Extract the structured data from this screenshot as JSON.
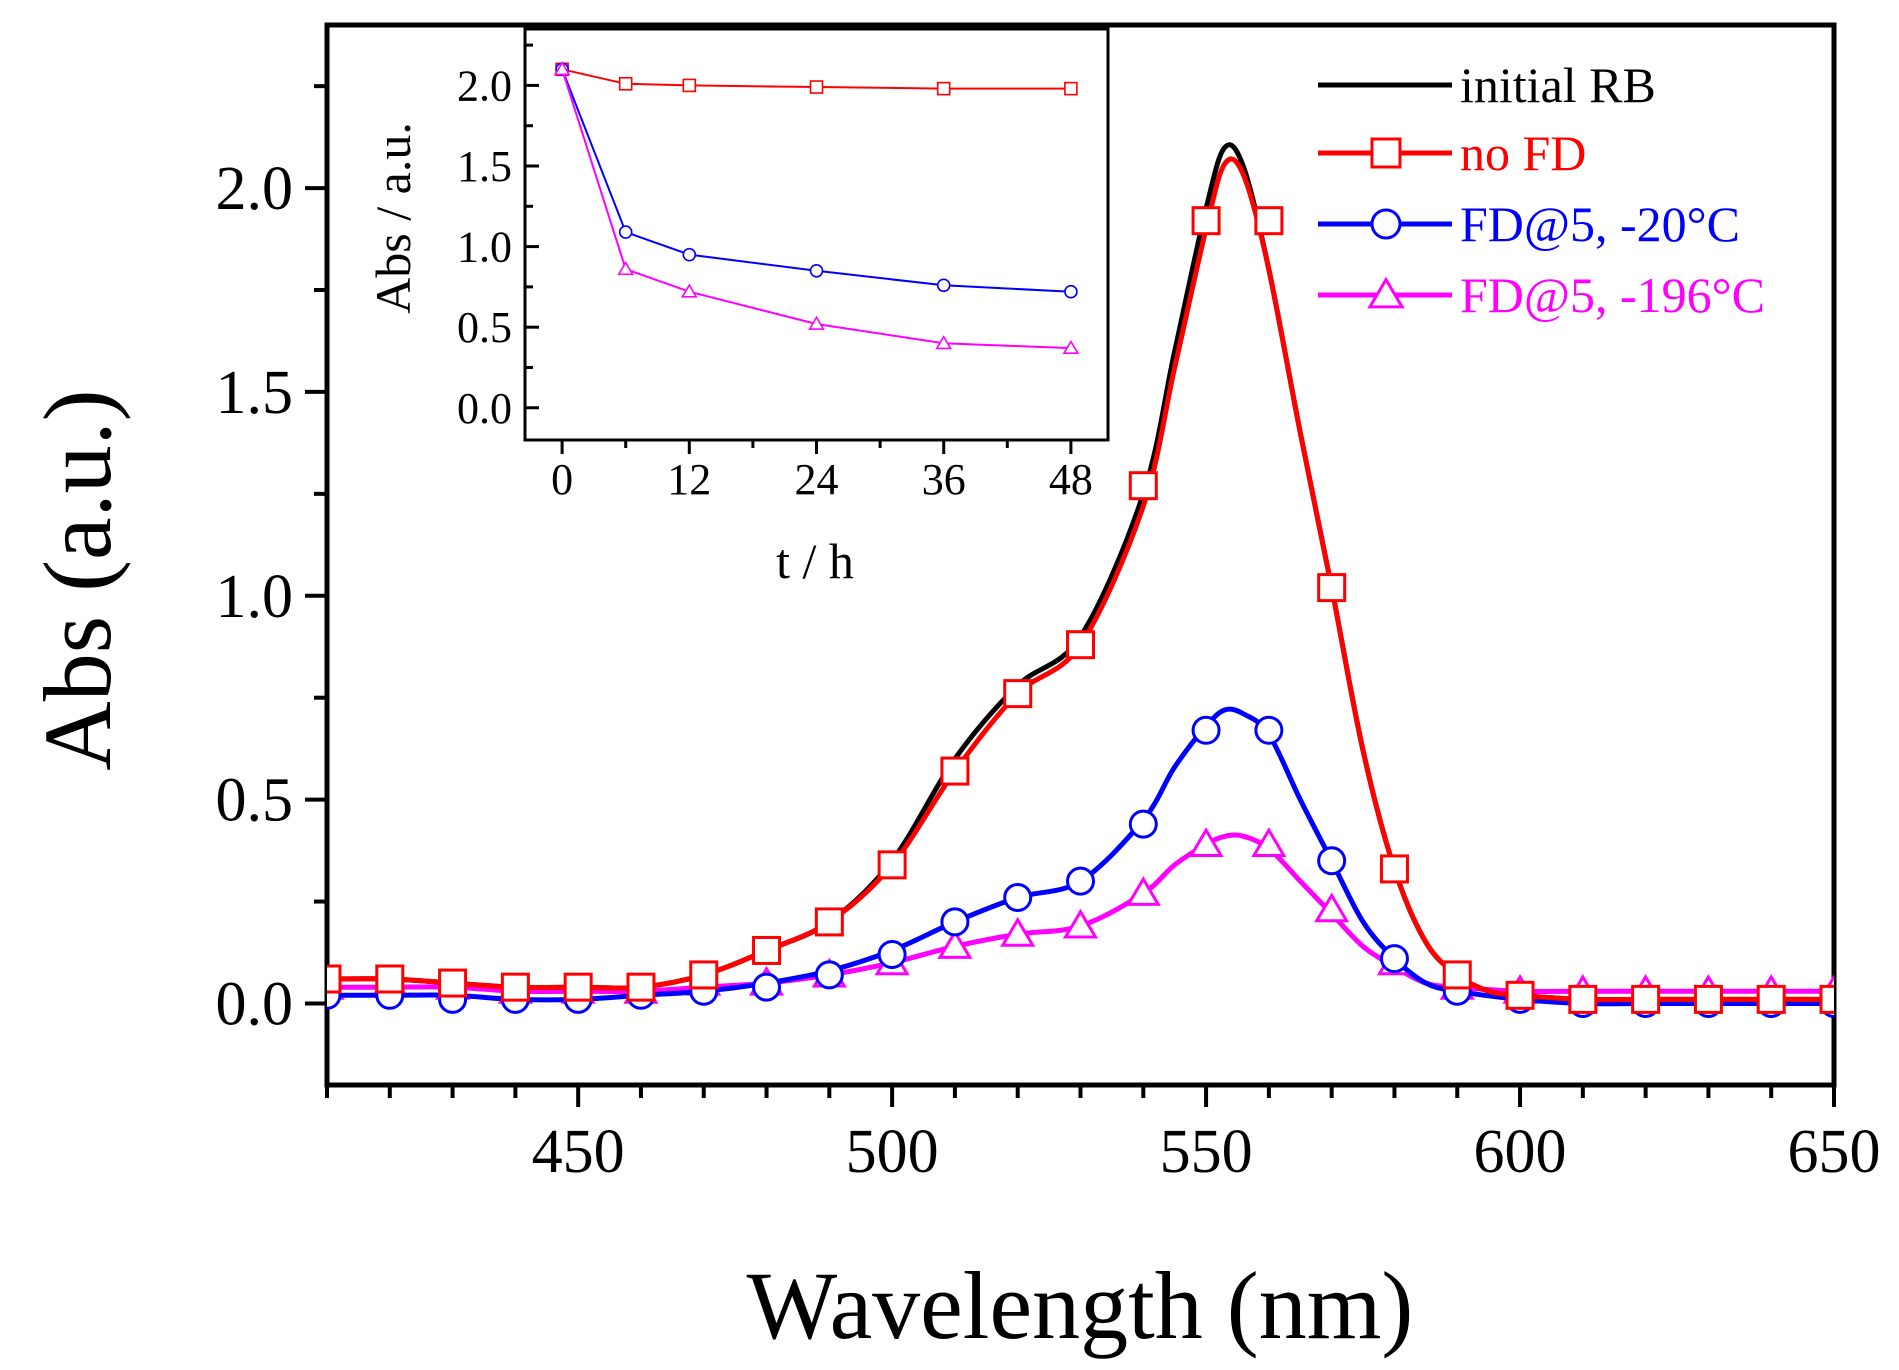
{
  "chart_data": [
    {
      "type": "line",
      "title": "",
      "xlabel": "Wavelength (nm)",
      "ylabel": "Abs (a.u.)",
      "xlim": [
        410,
        650
      ],
      "ylim": [
        -0.2,
        2.4
      ],
      "xticks": [
        450,
        500,
        550,
        600,
        650
      ],
      "yticks": [
        0.0,
        0.5,
        1.0,
        1.5,
        2.0
      ],
      "x_tick_labels": [
        "450",
        "500",
        "550",
        "600",
        "650"
      ],
      "y_tick_labels": [
        "0.0",
        "0.5",
        "1.0",
        "1.5",
        "2.0"
      ],
      "grid": false,
      "legend_position": "top-right",
      "series": [
        {
          "name": "initial RB",
          "color": "#000000",
          "marker": "none",
          "x": [
            410,
            420,
            430,
            440,
            450,
            460,
            470,
            480,
            490,
            500,
            510,
            520,
            530,
            540,
            545,
            550,
            553,
            556,
            560,
            565,
            570,
            575,
            580,
            585,
            590,
            595,
            600,
            610,
            620,
            630,
            640,
            650
          ],
          "y": [
            0.06,
            0.06,
            0.05,
            0.04,
            0.04,
            0.04,
            0.07,
            0.13,
            0.2,
            0.35,
            0.6,
            0.78,
            0.9,
            1.25,
            1.6,
            1.95,
            2.1,
            2.05,
            1.8,
            1.4,
            1.02,
            0.62,
            0.33,
            0.15,
            0.07,
            0.03,
            0.02,
            0.01,
            0.01,
            0.01,
            0.01,
            0.01
          ]
        },
        {
          "name": "no FD",
          "color": "#ff0000",
          "marker": "square",
          "x": [
            410,
            420,
            430,
            440,
            450,
            460,
            470,
            480,
            490,
            500,
            510,
            520,
            530,
            540,
            545,
            550,
            553,
            556,
            560,
            565,
            570,
            575,
            580,
            585,
            590,
            595,
            600,
            610,
            620,
            630,
            640,
            650
          ],
          "y": [
            0.06,
            0.06,
            0.05,
            0.04,
            0.04,
            0.04,
            0.07,
            0.13,
            0.2,
            0.34,
            0.57,
            0.76,
            0.88,
            1.22,
            1.56,
            1.9,
            2.06,
            2.03,
            1.8,
            1.4,
            1.02,
            0.62,
            0.33,
            0.15,
            0.07,
            0.03,
            0.02,
            0.01,
            0.01,
            0.01,
            0.01,
            0.01
          ],
          "marker_x": [
            410,
            420,
            430,
            440,
            450,
            460,
            470,
            480,
            490,
            500,
            510,
            520,
            530,
            540,
            550,
            560,
            570,
            580,
            590,
            600,
            610,
            620,
            630,
            640,
            650
          ],
          "marker_y": [
            0.06,
            0.06,
            0.05,
            0.04,
            0.04,
            0.04,
            0.07,
            0.13,
            0.2,
            0.34,
            0.57,
            0.76,
            0.88,
            1.27,
            1.92,
            1.92,
            1.02,
            0.33,
            0.07,
            0.02,
            0.01,
            0.01,
            0.01,
            0.01,
            0.01
          ]
        },
        {
          "name": "FD@5, -20°C",
          "color": "#0000ff",
          "marker": "circle",
          "x": [
            410,
            420,
            430,
            440,
            450,
            460,
            470,
            480,
            490,
            500,
            510,
            520,
            530,
            540,
            545,
            550,
            553,
            556,
            560,
            565,
            570,
            575,
            580,
            585,
            590,
            600,
            610,
            620,
            630,
            640,
            650
          ],
          "y": [
            0.02,
            0.02,
            0.02,
            0.01,
            0.01,
            0.02,
            0.03,
            0.05,
            0.08,
            0.13,
            0.2,
            0.26,
            0.3,
            0.45,
            0.58,
            0.68,
            0.72,
            0.71,
            0.66,
            0.5,
            0.35,
            0.2,
            0.11,
            0.05,
            0.03,
            0.01,
            0.0,
            0.0,
            0.0,
            0.0,
            0.0
          ],
          "marker_x": [
            410,
            420,
            430,
            440,
            450,
            460,
            470,
            480,
            490,
            500,
            510,
            520,
            530,
            540,
            550,
            560,
            570,
            580,
            590,
            600,
            610,
            620,
            630,
            640,
            650
          ],
          "marker_y": [
            0.02,
            0.02,
            0.01,
            0.01,
            0.01,
            0.02,
            0.03,
            0.04,
            0.07,
            0.12,
            0.2,
            0.26,
            0.3,
            0.44,
            0.67,
            0.67,
            0.35,
            0.11,
            0.03,
            0.01,
            0.0,
            0.0,
            0.0,
            0.0,
            0.0
          ]
        },
        {
          "name": "FD@5, -196°C",
          "color": "#ff00ff",
          "marker": "triangle",
          "x": [
            410,
            420,
            430,
            440,
            450,
            460,
            470,
            480,
            490,
            500,
            510,
            520,
            530,
            540,
            545,
            550,
            553,
            556,
            560,
            565,
            570,
            575,
            580,
            585,
            590,
            600,
            610,
            620,
            630,
            640,
            650
          ],
          "y": [
            0.04,
            0.04,
            0.04,
            0.03,
            0.03,
            0.03,
            0.04,
            0.05,
            0.07,
            0.1,
            0.14,
            0.17,
            0.19,
            0.27,
            0.34,
            0.39,
            0.41,
            0.41,
            0.38,
            0.3,
            0.22,
            0.14,
            0.09,
            0.05,
            0.04,
            0.03,
            0.03,
            0.03,
            0.03,
            0.03,
            0.03
          ],
          "marker_x": [
            410,
            420,
            430,
            440,
            450,
            460,
            470,
            480,
            490,
            500,
            510,
            520,
            530,
            540,
            550,
            560,
            570,
            580,
            590,
            600,
            610,
            620,
            630,
            640,
            650
          ],
          "marker_y": [
            0.04,
            0.05,
            0.04,
            0.03,
            0.03,
            0.03,
            0.05,
            0.05,
            0.07,
            0.1,
            0.14,
            0.17,
            0.19,
            0.27,
            0.39,
            0.39,
            0.23,
            0.1,
            0.04,
            0.03,
            0.03,
            0.03,
            0.03,
            0.03,
            0.03
          ]
        }
      ]
    },
    {
      "type": "line",
      "title": "",
      "xlabel": "t / h",
      "ylabel": "Abs / a.u.",
      "xlim": [
        -3.5,
        51.5
      ],
      "ylim": [
        -0.2,
        2.35
      ],
      "xticks": [
        0,
        12,
        24,
        36,
        48
      ],
      "yticks": [
        0.0,
        0.5,
        1.0,
        1.5,
        2.0
      ],
      "x_tick_labels": [
        "0",
        "12",
        "24",
        "36",
        "48"
      ],
      "y_tick_labels": [
        "0.0",
        "0.5",
        "1.0",
        "1.5",
        "2.0"
      ],
      "grid": false,
      "series": [
        {
          "name": "no FD",
          "color": "#ff0000",
          "marker": "square",
          "x": [
            0,
            6,
            12,
            24,
            36,
            48
          ],
          "y": [
            2.1,
            2.01,
            2.0,
            1.99,
            1.98,
            1.98
          ]
        },
        {
          "name": "FD@5, -20°C",
          "color": "#0000ff",
          "marker": "circle",
          "x": [
            0,
            6,
            12,
            24,
            36,
            48
          ],
          "y": [
            2.1,
            1.09,
            0.95,
            0.85,
            0.76,
            0.72
          ]
        },
        {
          "name": "FD@5, -196°C",
          "color": "#ff00ff",
          "marker": "triangle",
          "x": [
            0,
            6,
            12,
            24,
            36,
            48
          ],
          "y": [
            2.1,
            0.86,
            0.72,
            0.52,
            0.4,
            0.37
          ]
        }
      ]
    }
  ]
}
